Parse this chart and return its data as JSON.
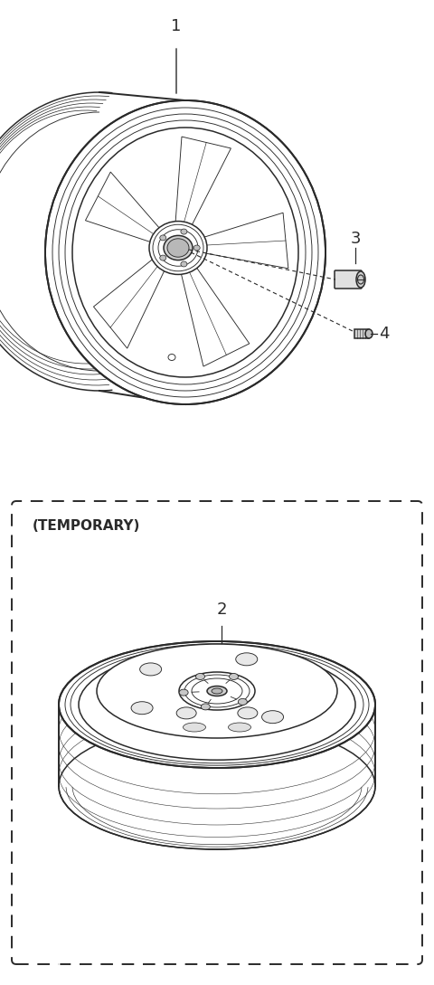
{
  "bg_color": "#ffffff",
  "line_color": "#2a2a2a",
  "fig_width": 4.8,
  "fig_height": 10.89,
  "dpi": 100,
  "label_1": "1",
  "label_2": "2",
  "label_3": "3",
  "label_4": "4",
  "temporary_text": "(TEMPORARY)",
  "font_size_labels": 13,
  "font_size_temp": 11
}
